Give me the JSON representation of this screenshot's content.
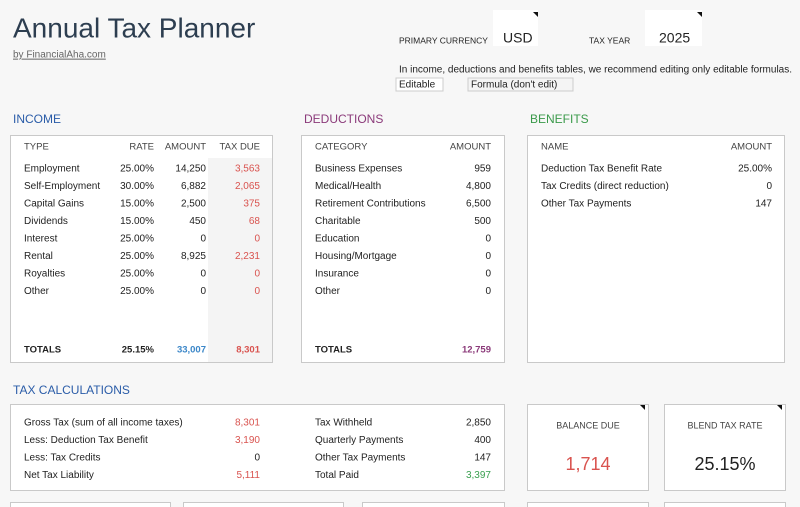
{
  "header": {
    "title": "Annual Tax Planner",
    "byline": "by FinancialAha.com",
    "currency_label": "PRIMARY CURRENCY",
    "currency": "USD",
    "tax_year_label": "TAX YEAR",
    "tax_year": "2025",
    "note": "In income, deductions and benefits tables, we recommend editing only editable formulas.",
    "legend": [
      "Editable",
      "Formula (don't edit)"
    ]
  },
  "income": {
    "title": "INCOME",
    "columns": [
      "TYPE",
      "RATE",
      "AMOUNT",
      "TAX DUE"
    ],
    "rows": [
      [
        "Employment",
        "25.00%",
        "14,250",
        "3,563"
      ],
      [
        "Self-Employment",
        "30.00%",
        "6,882",
        "2,065"
      ],
      [
        "Capital Gains",
        "15.00%",
        "2,500",
        "375"
      ],
      [
        "Dividends",
        "15.00%",
        "450",
        "68"
      ],
      [
        "Interest",
        "25.00%",
        "0",
        "0"
      ],
      [
        "Rental",
        "25.00%",
        "8,925",
        "2,231"
      ],
      [
        "Royalties",
        "25.00%",
        "0",
        "0"
      ],
      [
        "Other",
        "25.00%",
        "0",
        "0"
      ]
    ],
    "totals": [
      "TOTALS",
      "25.15%",
      "33,007",
      "8,301"
    ]
  },
  "deductions": {
    "title": "DEDUCTIONS",
    "columns": [
      "CATEGORY",
      "AMOUNT"
    ],
    "rows": [
      [
        "Business Expenses",
        "959"
      ],
      [
        "Medical/Health",
        "4,800"
      ],
      [
        "Retirement Contributions",
        "6,500"
      ],
      [
        "Charitable",
        "500"
      ],
      [
        "Education",
        "0"
      ],
      [
        "Housing/Mortgage",
        "0"
      ],
      [
        "Insurance",
        "0"
      ],
      [
        "Other",
        "0"
      ]
    ],
    "totals": [
      "TOTALS",
      "12,759"
    ]
  },
  "benefits": {
    "title": "BENEFITS",
    "columns": [
      "NAME",
      "AMOUNT"
    ],
    "rows": [
      [
        "Deduction Tax Benefit Rate",
        "25.00%"
      ],
      [
        "Tax Credits (direct reduction)",
        "0"
      ],
      [
        "Other Tax Payments",
        "147"
      ]
    ]
  },
  "tax_calculations": {
    "title": "TAX CALCULATIONS",
    "left": [
      [
        "Gross Tax (sum of all income taxes)",
        "8,301"
      ],
      [
        "Less: Deduction Tax Benefit",
        "3,190"
      ],
      [
        "Less: Tax Credits",
        "0"
      ],
      [
        "Net Tax Liability",
        "5,111"
      ]
    ],
    "right": [
      [
        "Tax Withheld",
        "2,850"
      ],
      [
        "Quarterly Payments",
        "400"
      ],
      [
        "Other Tax Payments",
        "147"
      ],
      [
        "Total Paid",
        "3,397"
      ]
    ],
    "balance_due": {
      "label": "BALANCE DUE",
      "value": "1,714"
    },
    "blend_tax_rate": {
      "label": "BLEND TAX RATE",
      "value": "25.15%"
    }
  }
}
